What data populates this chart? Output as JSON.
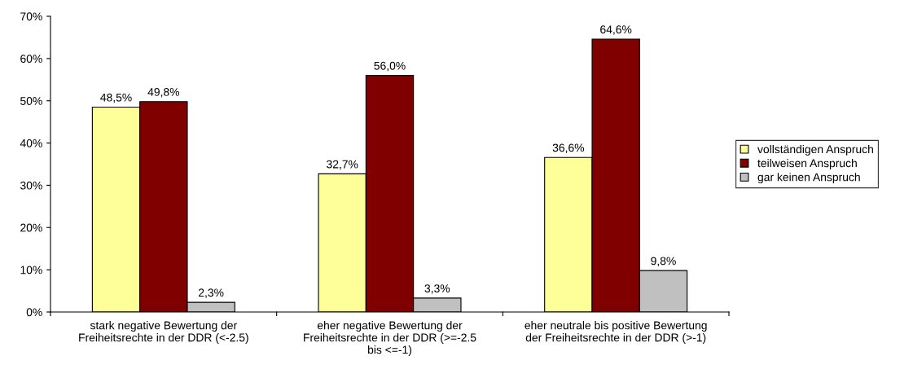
{
  "chart_data": {
    "type": "bar",
    "categories": [
      "stark negative Bewertung der Freiheitsrechte in der DDR (<-2.5)",
      "eher negative Bewertung der Freiheitsrechte in der DDR (>=-2.5 bis <=-1)",
      "eher neutrale bis positive Bewertung der Freiheitsrechte in der DDR (>-1)"
    ],
    "series": [
      {
        "name": "vollständigen Anspruch",
        "color": "#ffff99",
        "values": [
          48.5,
          32.7,
          36.6
        ],
        "value_labels": [
          "48,5%",
          "32,7%",
          "36,6%"
        ]
      },
      {
        "name": "teilweisen Anspruch",
        "color": "#800000",
        "values": [
          49.8,
          56.0,
          64.6
        ],
        "value_labels": [
          "49,8%",
          "56,0%",
          "64,6%"
        ]
      },
      {
        "name": "gar keinen Anspruch",
        "color": "#c0c0c0",
        "values": [
          2.3,
          3.3,
          9.8
        ],
        "value_labels": [
          "2,3%",
          "3,3%",
          "9,8%"
        ]
      }
    ],
    "ylim": [
      0,
      70
    ],
    "yticks": [
      {
        "value": 0,
        "label": "0%"
      },
      {
        "value": 10,
        "label": "10%"
      },
      {
        "value": 20,
        "label": "20%"
      },
      {
        "value": 30,
        "label": "30%"
      },
      {
        "value": 40,
        "label": "40%"
      },
      {
        "value": 50,
        "label": "50%"
      },
      {
        "value": 60,
        "label": "60%"
      },
      {
        "value": 70,
        "label": "70%"
      }
    ],
    "grid": false,
    "legend": "right"
  }
}
